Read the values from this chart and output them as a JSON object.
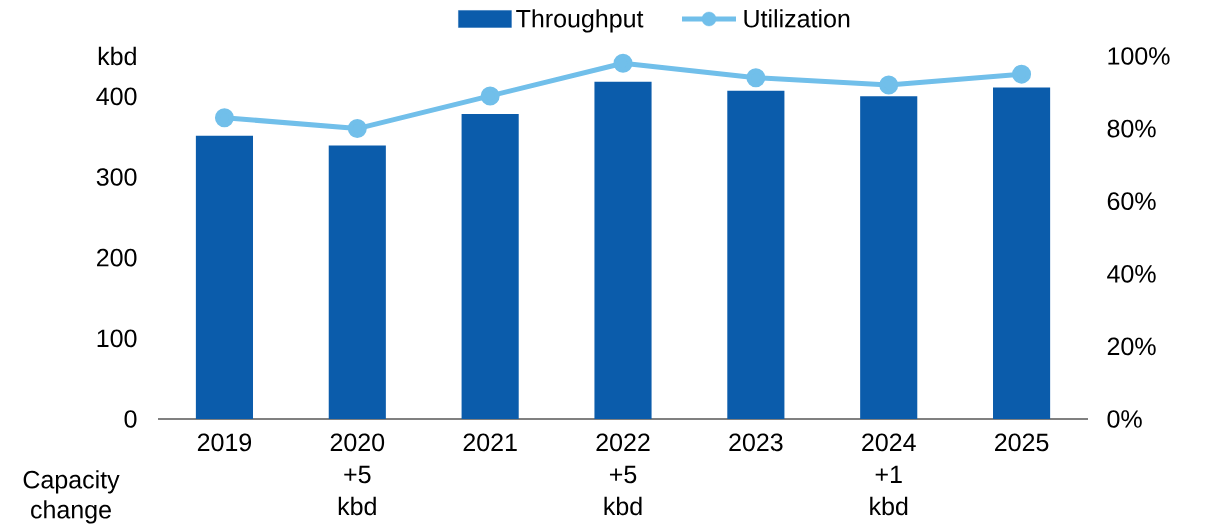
{
  "chart_data": {
    "type": "bar",
    "categories": [
      "2019",
      "2020 +5 kbd",
      "2021",
      "2022 +5 kbd",
      "2023",
      "2024 +1 kbd",
      "2025"
    ],
    "series": [
      {
        "name": "Throughput",
        "color": "#0b5cab",
        "values": [
          351,
          339,
          378,
          418,
          407,
          400,
          411
        ]
      },
      {
        "name": "Utilization",
        "type": "line",
        "axis": "y2",
        "color": "#71bfea",
        "marker": "circle",
        "values": [
          83,
          80,
          89,
          98,
          94,
          92,
          95
        ]
      }
    ],
    "ylim": [
      0,
      450
    ],
    "yticks": [
      0,
      100,
      200,
      300,
      400,
      {
        "value": 450,
        "label": "kbd"
      }
    ],
    "y2lim": [
      0,
      100
    ],
    "y2ticks": [
      {
        "value": 0,
        "label": "0%"
      },
      {
        "value": 20,
        "label": "20%"
      },
      {
        "value": 40,
        "label": "40%"
      },
      {
        "value": 60,
        "label": "60%"
      },
      {
        "value": 80,
        "label": "80%"
      },
      {
        "value": 100,
        "label": "100%"
      }
    ],
    "legend": "top",
    "annotations": [
      "Capacity change"
    ]
  }
}
